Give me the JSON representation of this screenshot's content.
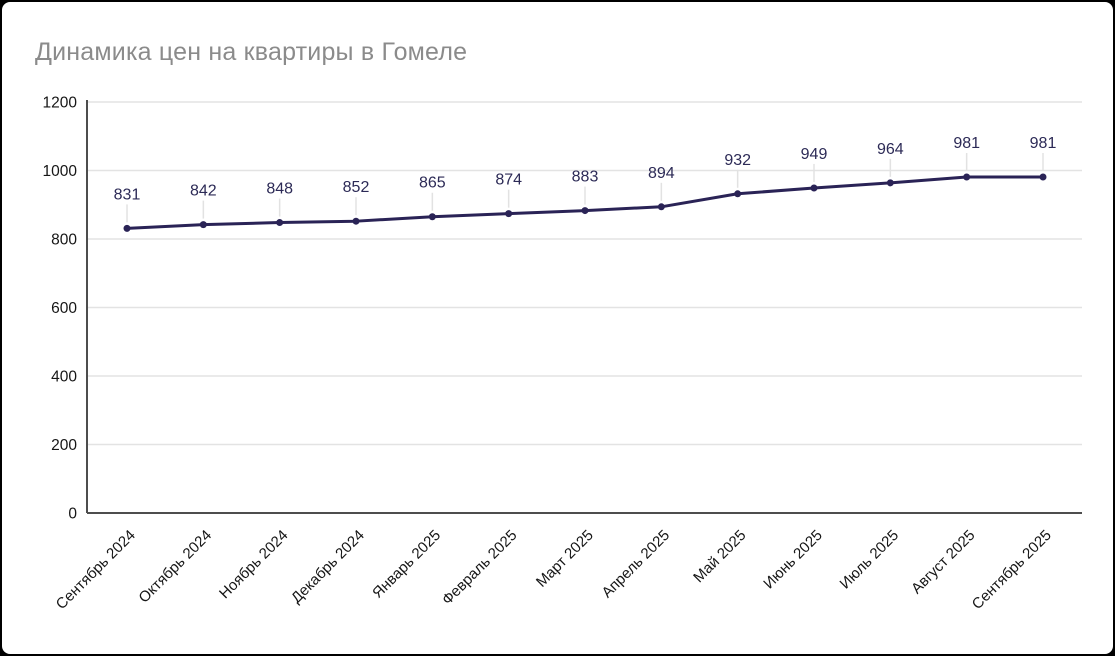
{
  "page": {
    "background_color": "#000000",
    "surface_color": "#ffffff"
  },
  "chart_data": {
    "type": "line",
    "title": "Динамика цен на квартиры в Гомеле",
    "categories": [
      "Сентябрь 2024",
      "Октябрь 2024",
      "Ноябрь 2024",
      "Декабрь 2024",
      "Январь 2025",
      "Февраль 2025",
      "Март 2025",
      "Апрель 2025",
      "Май 2025",
      "Июнь 2025",
      "Июль 2025",
      "Август 2025",
      "Сентябрь 2025"
    ],
    "values": [
      831,
      842,
      848,
      852,
      865,
      874,
      883,
      894,
      932,
      949,
      964,
      981,
      981
    ],
    "ylim": [
      0,
      1200
    ],
    "yticks": [
      0,
      200,
      400,
      600,
      800,
      1000,
      1200
    ],
    "grid": true,
    "legend": "none",
    "data_labels": true,
    "x_labels_rotation_deg": -45,
    "colors": {
      "line": "#2a2356",
      "point": "#2a2356",
      "data_label": "#2c2a56",
      "title": "#8b8b8b",
      "axis": "#4d4d4d",
      "gridline": "#e3e3e3",
      "leader": "#e2e2e2",
      "tick_label": "#161616"
    }
  }
}
